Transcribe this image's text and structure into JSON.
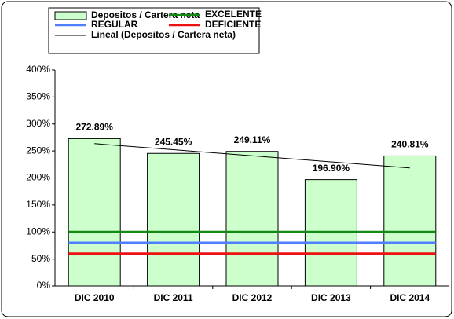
{
  "chart_data": {
    "type": "bar",
    "categories": [
      "DIC 2010",
      "DIC 2011",
      "DIC 2012",
      "DIC 2013",
      "DIC 2014"
    ],
    "series": [
      {
        "name": "Depositos / Cartera neta",
        "type": "bar",
        "color": "#ccffcc",
        "values": [
          272.89,
          245.45,
          249.11,
          196.9,
          240.81
        ],
        "value_labels": [
          "272.89%",
          "245.45%",
          "249.11%",
          "196.90%",
          "240.81%"
        ]
      },
      {
        "name": "EXCELENTE",
        "type": "line",
        "color": "#138a13",
        "values": [
          100,
          100,
          100,
          100,
          100
        ]
      },
      {
        "name": "REGULAR",
        "type": "line",
        "color": "#4f7fff",
        "values": [
          80,
          80,
          80,
          80,
          80
        ]
      },
      {
        "name": "DEFICIENTE",
        "type": "line",
        "color": "#ee1111",
        "values": [
          60,
          60,
          60,
          60,
          60
        ]
      },
      {
        "name": "Lineal (Depositos / Cartera neta)",
        "type": "trend",
        "color": "#000000",
        "values": [
          263.57,
          252.3,
          241.03,
          229.76,
          218.49
        ]
      }
    ],
    "ylim": [
      0,
      400
    ],
    "yticks": [
      {
        "value": 0,
        "label": "0%"
      },
      {
        "value": 50,
        "label": "50%"
      },
      {
        "value": 100,
        "label": "100%"
      },
      {
        "value": 150,
        "label": "150%"
      },
      {
        "value": 200,
        "label": "200%"
      },
      {
        "value": 250,
        "label": "250%"
      },
      {
        "value": 300,
        "label": "300%"
      },
      {
        "value": 350,
        "label": "350%"
      },
      {
        "value": 400,
        "label": "400%"
      }
    ],
    "grid": false
  }
}
